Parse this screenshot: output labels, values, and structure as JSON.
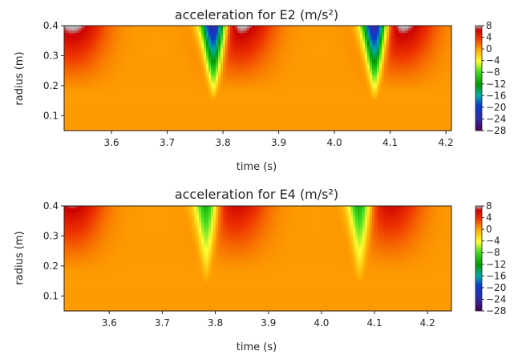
{
  "chart_data": [
    {
      "type": "heatmap",
      "title": "acceleration for E2 (m/s²)",
      "xlabel": "time (s)",
      "ylabel": "radius (m)",
      "xlim": [
        3.515,
        4.21
      ],
      "ylim": [
        0.05,
        0.4
      ],
      "xticks": [
        3.6,
        3.7,
        3.8,
        3.9,
        4.0,
        4.1,
        4.2
      ],
      "xtick_labels": [
        "3.6",
        "3.7",
        "3.8",
        "3.9",
        "4.0",
        "4.1",
        "4.2"
      ],
      "yticks": [
        0.1,
        0.2,
        0.3,
        0.4
      ],
      "ytick_labels": [
        "0.1",
        "0.2",
        "0.3",
        "0.4"
      ],
      "colorbar": {
        "range": [
          -28,
          8
        ],
        "ticks": [
          8,
          4,
          0,
          -4,
          -8,
          -12,
          -16,
          -20,
          -24,
          -28
        ],
        "tick_labels": [
          "8",
          "4",
          "0",
          "−4",
          "−8",
          "−12",
          "−16",
          "−20",
          "−24",
          "−28"
        ]
      },
      "features": [
        {
          "kind": "trough",
          "time": 3.783,
          "min_value": -28,
          "reach_radius": 0.15
        },
        {
          "kind": "trough",
          "time": 4.072,
          "min_value": -28,
          "reach_radius": 0.15
        },
        {
          "kind": "peak",
          "time": 3.53,
          "max_value": 8
        },
        {
          "kind": "peak",
          "time": 3.83,
          "max_value": 8
        },
        {
          "kind": "peak",
          "time": 4.12,
          "max_value": 8
        }
      ]
    },
    {
      "type": "heatmap",
      "title": "acceleration for E4 (m/s²)",
      "xlabel": "time (s)",
      "ylabel": "radius (m)",
      "xlim": [
        3.515,
        4.245
      ],
      "ylim": [
        0.05,
        0.4
      ],
      "xticks": [
        3.6,
        3.7,
        3.8,
        3.9,
        4.0,
        4.1,
        4.2
      ],
      "xtick_labels": [
        "3.6",
        "3.7",
        "3.8",
        "3.9",
        "4.0",
        "4.1",
        "4.2"
      ],
      "yticks": [
        0.1,
        0.2,
        0.3,
        0.4
      ],
      "ytick_labels": [
        "0.1",
        "0.2",
        "0.3",
        "0.4"
      ],
      "colorbar": {
        "range": [
          -28,
          8
        ],
        "ticks": [
          8,
          4,
          0,
          -4,
          -8,
          -12,
          -16,
          -20,
          -24,
          -28
        ],
        "tick_labels": [
          "8",
          "4",
          "0",
          "−4",
          "−8",
          "−12",
          "−16",
          "−20",
          "−24",
          "−28"
        ]
      },
      "features": [
        {
          "kind": "trough",
          "time": 3.783,
          "min_value": -12,
          "reach_radius": 0.14
        },
        {
          "kind": "trough",
          "time": 4.072,
          "min_value": -12,
          "reach_radius": 0.14
        },
        {
          "kind": "peak",
          "time": 3.53,
          "max_value": 7
        },
        {
          "kind": "peak",
          "time": 3.84,
          "max_value": 6
        },
        {
          "kind": "peak",
          "time": 4.13,
          "max_value": 6
        }
      ]
    }
  ]
}
